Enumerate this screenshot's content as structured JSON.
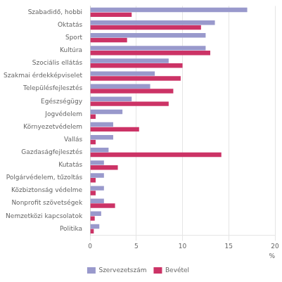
{
  "chart_data": {
    "type": "bar",
    "orientation": "horizontal",
    "categories": [
      "Szabadidő, hobbi",
      "Oktatás",
      "Sport",
      "Kultúra",
      "Szociális ellátás",
      "Szakmai érdekképviselet",
      "Településfejlesztés",
      "Egészségügy",
      "Jogvédelem",
      "Környezetvédelem",
      "Vallás",
      "Gazdaságfejlesztés",
      "Kutatás",
      "Polgárvédelem, tűzoltás",
      "Közbiztonság védelme",
      "Nonprofit szövetségek",
      "Nemzetközi kapcsolatok",
      "Politika"
    ],
    "series": [
      {
        "name": "Szervezetszám",
        "color": "#9999cc",
        "values": [
          17.0,
          13.5,
          12.5,
          12.5,
          8.5,
          7.0,
          6.5,
          4.5,
          3.5,
          2.5,
          2.5,
          2.0,
          1.5,
          1.5,
          1.5,
          1.5,
          1.2,
          1.0
        ]
      },
      {
        "name": "Bevétel",
        "color": "#cc3366",
        "values": [
          4.5,
          12.0,
          4.0,
          13.0,
          10.0,
          9.8,
          9.0,
          8.5,
          0.6,
          5.3,
          0.6,
          14.2,
          3.0,
          0.6,
          0.6,
          2.7,
          0.5,
          0.4
        ]
      }
    ],
    "xlabel": "%",
    "xlim": [
      0,
      20
    ],
    "xticks": [
      0,
      5,
      10,
      15,
      20
    ],
    "grid": true,
    "legend": "bottom"
  }
}
